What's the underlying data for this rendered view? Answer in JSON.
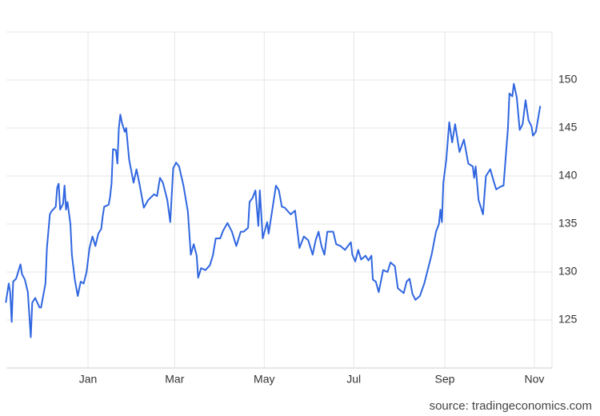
{
  "chart_data": {
    "type": "line",
    "source": "source: tradingeconomics.com",
    "color": "#2f66e0",
    "x": [
      -56,
      -54,
      -53,
      -52,
      -51,
      -49,
      -46,
      -45,
      -43,
      -41,
      -39,
      -38,
      -36,
      -33,
      -32,
      -29,
      -28,
      -26,
      -25,
      -22,
      -21,
      -20,
      -19,
      -17,
      -16,
      -15,
      -14,
      -12,
      -11,
      -9,
      -7,
      -5,
      -3,
      -1,
      1,
      3,
      5,
      7,
      9,
      10,
      11,
      14,
      15,
      16,
      17,
      19,
      20,
      21,
      22,
      23,
      25,
      26,
      28,
      31,
      33,
      35,
      38,
      41,
      45,
      47,
      49,
      51,
      54,
      56,
      58,
      60,
      62,
      65,
      68,
      70,
      72,
      74,
      75,
      77,
      80,
      83,
      85,
      87,
      90,
      92,
      95,
      98,
      101,
      104,
      106,
      109,
      110,
      112,
      114,
      116,
      117,
      119,
      122,
      123,
      125,
      128,
      130,
      132,
      134,
      138,
      141,
      144,
      147,
      150,
      153,
      155,
      157,
      159,
      161,
      163,
      167,
      169,
      172,
      175,
      179,
      180,
      182,
      184,
      186,
      189,
      191,
      193,
      194,
      196,
      198,
      201,
      204,
      206,
      209,
      211,
      215,
      217,
      219,
      221,
      223,
      226,
      229,
      231,
      234,
      237,
      239,
      240,
      241,
      242,
      244,
      246,
      248,
      250,
      253,
      256,
      259,
      262,
      263,
      264,
      266,
      269,
      271,
      274,
      276,
      278,
      281,
      283,
      286,
      287,
      289,
      290,
      292,
      294,
      296,
      298,
      300,
      302,
      303,
      305,
      308
    ],
    "values": [
      126.8,
      128.8,
      127.9,
      124.8,
      129.0,
      129.3,
      130.8,
      129.8,
      129.2,
      127.9,
      123.2,
      126.8,
      127.3,
      126.3,
      126.3,
      128.8,
      132.5,
      136.0,
      136.3,
      136.8,
      138.8,
      139.2,
      136.5,
      137.1,
      139.0,
      136.5,
      137.3,
      135.0,
      131.8,
      129.2,
      127.5,
      129.0,
      128.8,
      130.0,
      132.5,
      133.7,
      132.7,
      134.0,
      134.5,
      135.8,
      136.8,
      137.0,
      137.8,
      139.2,
      142.8,
      142.7,
      141.3,
      145.0,
      146.4,
      145.6,
      144.6,
      145.0,
      141.7,
      139.3,
      140.7,
      139.2,
      136.7,
      137.5,
      138.1,
      137.9,
      139.8,
      139.3,
      137.5,
      135.2,
      140.8,
      141.4,
      141.0,
      139.0,
      136.3,
      131.8,
      132.9,
      131.7,
      129.4,
      130.4,
      130.2,
      130.7,
      131.7,
      133.5,
      133.5,
      134.3,
      135.1,
      134.2,
      132.7,
      134.2,
      134.2,
      134.6,
      137.3,
      137.7,
      138.5,
      134.8,
      138.5,
      133.5,
      135.2,
      134.0,
      136.0,
      139.0,
      138.5,
      136.8,
      136.7,
      136.0,
      136.4,
      132.5,
      133.7,
      133.3,
      131.8,
      133.3,
      134.2,
      132.7,
      131.8,
      134.2,
      134.2,
      132.9,
      132.7,
      132.3,
      133.1,
      131.8,
      131.1,
      132.3,
      131.3,
      131.7,
      131.2,
      131.7,
      129.2,
      129.0,
      127.9,
      130.2,
      130.0,
      131.0,
      130.6,
      128.3,
      127.8,
      129.0,
      129.3,
      127.7,
      127.1,
      127.5,
      128.8,
      130.0,
      131.8,
      134.2,
      135.0,
      136.5,
      135.2,
      139.3,
      141.7,
      145.6,
      143.5,
      145.4,
      142.5,
      143.8,
      141.3,
      141.0,
      139.8,
      141.0,
      137.5,
      136.0,
      140.0,
      140.7,
      139.6,
      138.6,
      138.9,
      139.0,
      145.0,
      148.6,
      148.3,
      149.6,
      148.2,
      144.8,
      145.4,
      147.9,
      145.8,
      145.2,
      144.2,
      144.6,
      147.3
    ],
    "xlim": [
      -55.6,
      316
    ],
    "xticks": [
      {
        "value": 0,
        "label": "Jan"
      },
      {
        "value": 59,
        "label": "Mar"
      },
      {
        "value": 120,
        "label": "May"
      },
      {
        "value": 181,
        "label": "Jul"
      },
      {
        "value": 243,
        "label": "Sep"
      },
      {
        "value": 304,
        "label": "Nov"
      }
    ],
    "ylim": [
      120,
      155
    ],
    "yticks": [
      125,
      130,
      135,
      140,
      145,
      150
    ],
    "grid": true
  }
}
